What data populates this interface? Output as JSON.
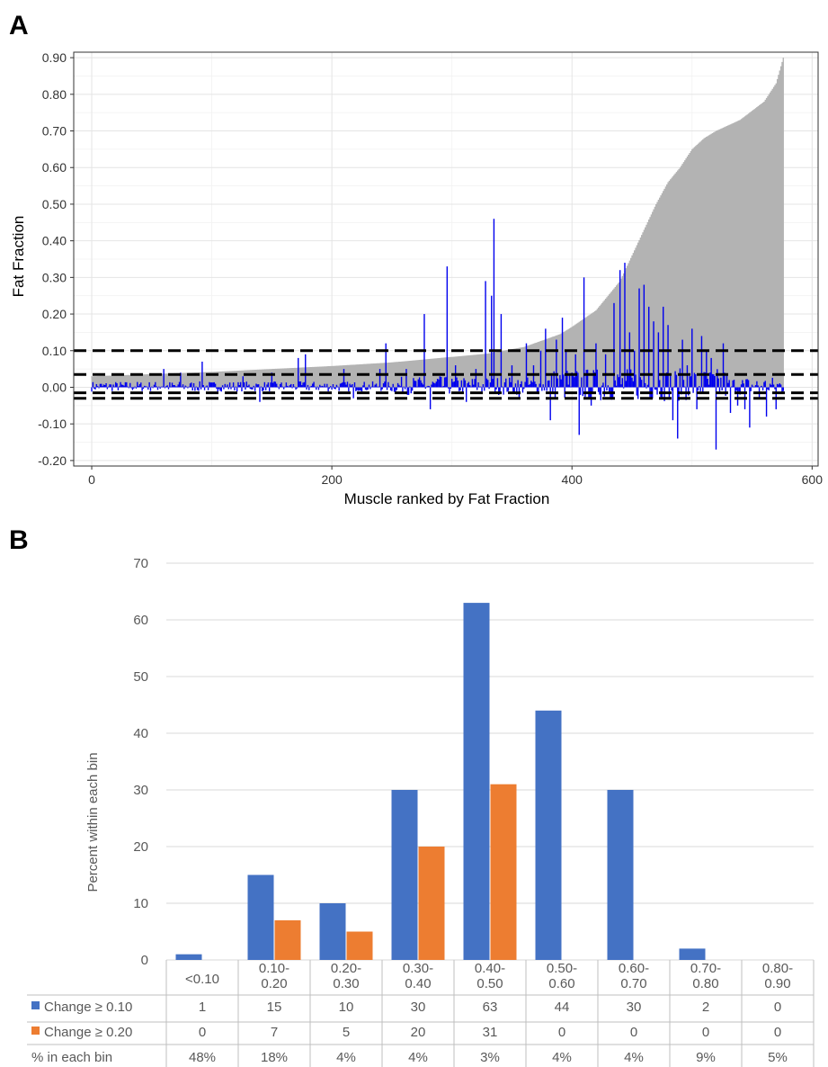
{
  "panels": {
    "a_letter": "A",
    "b_letter": "B"
  },
  "chart_data": [
    {
      "type": "bar",
      "panel": "A",
      "title": "",
      "xlabel": "Muscle ranked by Fat Fraction",
      "ylabel": "Fat Fraction",
      "xlim": [
        -15,
        605
      ],
      "ylim": [
        -0.215,
        0.915
      ],
      "x_ticks": [
        0,
        200,
        400,
        600
      ],
      "y_ticks": [
        -0.2,
        -0.1,
        0.0,
        0.1,
        0.2,
        0.3,
        0.4,
        0.5,
        0.6,
        0.7,
        0.8,
        0.9
      ],
      "y_tick_labels": [
        "-0.20",
        "-0.10",
        "0.00",
        "0.10",
        "0.20",
        "0.30",
        "0.40",
        "0.50",
        "0.60",
        "0.70",
        "0.80",
        "0.90"
      ],
      "grid": true,
      "n_muscles": 577,
      "series": [
        {
          "role": "baseline fat fraction (sorted ascending)",
          "color": "#b3b3b3",
          "profile_x": [
            0,
            25,
            50,
            100,
            150,
            200,
            250,
            300,
            330,
            360,
            390,
            400,
            420,
            440,
            450,
            460,
            470,
            480,
            490,
            500,
            510,
            520,
            540,
            560,
            570,
            576
          ],
          "profile_y": [
            0.03,
            0.033,
            0.036,
            0.042,
            0.05,
            0.058,
            0.068,
            0.083,
            0.092,
            0.11,
            0.145,
            0.165,
            0.21,
            0.29,
            0.36,
            0.43,
            0.5,
            0.56,
            0.6,
            0.65,
            0.68,
            0.7,
            0.73,
            0.78,
            0.83,
            0.9
          ]
        },
        {
          "role": "change in fat fraction",
          "color": "#0000ee",
          "peaks": [
            {
              "x": 60,
              "y": 0.05
            },
            {
              "x": 74,
              "y": 0.04
            },
            {
              "x": 92,
              "y": 0.07
            },
            {
              "x": 126,
              "y": 0.03
            },
            {
              "x": 140,
              "y": -0.04
            },
            {
              "x": 150,
              "y": 0.04
            },
            {
              "x": 172,
              "y": 0.08
            },
            {
              "x": 178,
              "y": 0.09
            },
            {
              "x": 210,
              "y": 0.05
            },
            {
              "x": 218,
              "y": -0.03
            },
            {
              "x": 240,
              "y": 0.05
            },
            {
              "x": 245,
              "y": 0.12
            },
            {
              "x": 262,
              "y": 0.05
            },
            {
              "x": 277,
              "y": 0.2
            },
            {
              "x": 282,
              "y": -0.06
            },
            {
              "x": 290,
              "y": 0.03
            },
            {
              "x": 296,
              "y": 0.33
            },
            {
              "x": 303,
              "y": 0.06
            },
            {
              "x": 312,
              "y": -0.04
            },
            {
              "x": 320,
              "y": 0.05
            },
            {
              "x": 328,
              "y": 0.29
            },
            {
              "x": 333,
              "y": 0.25
            },
            {
              "x": 335,
              "y": 0.46
            },
            {
              "x": 341,
              "y": 0.2
            },
            {
              "x": 350,
              "y": 0.06
            },
            {
              "x": 356,
              "y": -0.03
            },
            {
              "x": 362,
              "y": 0.12
            },
            {
              "x": 368,
              "y": 0.06
            },
            {
              "x": 374,
              "y": 0.1
            },
            {
              "x": 378,
              "y": 0.16
            },
            {
              "x": 382,
              "y": -0.09
            },
            {
              "x": 387,
              "y": 0.13
            },
            {
              "x": 392,
              "y": 0.19
            },
            {
              "x": 395,
              "y": 0.1
            },
            {
              "x": 403,
              "y": 0.09
            },
            {
              "x": 406,
              "y": -0.13
            },
            {
              "x": 410,
              "y": 0.3
            },
            {
              "x": 416,
              "y": -0.05
            },
            {
              "x": 420,
              "y": 0.12
            },
            {
              "x": 428,
              "y": 0.09
            },
            {
              "x": 435,
              "y": 0.23
            },
            {
              "x": 440,
              "y": 0.32
            },
            {
              "x": 444,
              "y": 0.34
            },
            {
              "x": 448,
              "y": 0.15
            },
            {
              "x": 452,
              "y": 0.1
            },
            {
              "x": 456,
              "y": 0.27
            },
            {
              "x": 460,
              "y": 0.28
            },
            {
              "x": 464,
              "y": 0.22
            },
            {
              "x": 468,
              "y": 0.18
            },
            {
              "x": 472,
              "y": 0.15
            },
            {
              "x": 476,
              "y": 0.22
            },
            {
              "x": 480,
              "y": 0.17
            },
            {
              "x": 484,
              "y": -0.09
            },
            {
              "x": 488,
              "y": -0.14
            },
            {
              "x": 492,
              "y": 0.13
            },
            {
              "x": 496,
              "y": 0.06
            },
            {
              "x": 500,
              "y": 0.16
            },
            {
              "x": 504,
              "y": -0.06
            },
            {
              "x": 508,
              "y": 0.14
            },
            {
              "x": 512,
              "y": 0.1
            },
            {
              "x": 516,
              "y": 0.08
            },
            {
              "x": 520,
              "y": -0.17
            },
            {
              "x": 526,
              "y": 0.12
            },
            {
              "x": 532,
              "y": -0.07
            },
            {
              "x": 538,
              "y": -0.05
            },
            {
              "x": 544,
              "y": -0.06
            },
            {
              "x": 548,
              "y": -0.11
            },
            {
              "x": 556,
              "y": -0.03
            },
            {
              "x": 562,
              "y": -0.08
            },
            {
              "x": 570,
              "y": -0.06
            }
          ]
        }
      ],
      "reference_lines": [
        0.1,
        0.035,
        -0.015,
        -0.03
      ],
      "reference_line_color": "#000000"
    },
    {
      "type": "bar",
      "panel": "B",
      "title": "",
      "xlabel": "",
      "ylabel": "Percent within each bin",
      "ylim": [
        0,
        70
      ],
      "y_ticks": [
        0,
        10,
        20,
        30,
        40,
        50,
        60,
        70
      ],
      "grid": true,
      "categories": [
        "<0.10",
        "0.10-\n0.20",
        "0.20-\n0.30",
        "0.30-\n0.40",
        "0.40-\n0.50",
        "0.50-\n0.60",
        "0.60-\n0.70",
        "0.70-\n0.80",
        "0.80-\n0.90"
      ],
      "category_lines": [
        [
          "<0.10"
        ],
        [
          "0.10-",
          "0.20"
        ],
        [
          "0.20-",
          "0.30"
        ],
        [
          "0.30-",
          "0.40"
        ],
        [
          "0.40-",
          "0.50"
        ],
        [
          "0.50-",
          "0.60"
        ],
        [
          "0.60-",
          "0.70"
        ],
        [
          "0.70-",
          "0.80"
        ],
        [
          "0.80-",
          "0.90"
        ]
      ],
      "series": [
        {
          "name": "Change ≥ 0.10",
          "color": "#4472c4",
          "values": [
            1,
            15,
            10,
            30,
            63,
            44,
            30,
            2,
            0
          ],
          "labels": [
            "1",
            "15",
            "10",
            "30",
            "63",
            "44",
            "30",
            "2",
            "0"
          ]
        },
        {
          "name": "Change ≥ 0.20",
          "color": "#ed7d31",
          "values": [
            0,
            7,
            5,
            20,
            31,
            0,
            0,
            0,
            0
          ],
          "labels": [
            "0",
            "7",
            "5",
            "20",
            "31",
            "0",
            "0",
            "0",
            "0"
          ]
        }
      ],
      "table_extra_row": {
        "name": "% in each bin",
        "values": [
          "48%",
          "18%",
          "4%",
          "4%",
          "3%",
          "4%",
          "4%",
          "9%",
          "5%"
        ]
      }
    }
  ]
}
